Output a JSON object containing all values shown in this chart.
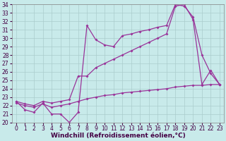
{
  "xlabel": "Windchill (Refroidissement éolien,°C)",
  "background_color": "#c8eaea",
  "line_color": "#993399",
  "grid_color": "#aacccc",
  "xlim": [
    -0.5,
    23.5
  ],
  "ylim": [
    20,
    34
  ],
  "yticks": [
    20,
    21,
    22,
    23,
    24,
    25,
    26,
    27,
    28,
    29,
    30,
    31,
    32,
    33,
    34
  ],
  "xticks": [
    0,
    1,
    2,
    3,
    4,
    5,
    6,
    7,
    8,
    9,
    10,
    11,
    12,
    13,
    14,
    15,
    16,
    17,
    18,
    19,
    20,
    21,
    22,
    23
  ],
  "line1_x": [
    0,
    1,
    2,
    3,
    4,
    5,
    6,
    7,
    8,
    9,
    10,
    11,
    12,
    13,
    14,
    15,
    16,
    17,
    18,
    19,
    20,
    21,
    22,
    23
  ],
  "line1_y": [
    22.5,
    21.5,
    21.2,
    22.3,
    21.0,
    21.0,
    20.0,
    21.2,
    31.5,
    29.8,
    29.2,
    29.0,
    30.3,
    30.5,
    30.8,
    31.0,
    31.3,
    31.5,
    34.0,
    33.8,
    32.5,
    28.0,
    25.8,
    24.5
  ],
  "line2_x": [
    0,
    1,
    2,
    3,
    4,
    5,
    6,
    7,
    8,
    9,
    10,
    11,
    12,
    13,
    14,
    15,
    16,
    17,
    18,
    19,
    20,
    21,
    22,
    23
  ],
  "line2_y": [
    22.5,
    22.2,
    22.0,
    22.5,
    22.3,
    22.5,
    22.7,
    25.5,
    25.5,
    26.5,
    27.0,
    27.5,
    28.0,
    28.5,
    29.0,
    29.5,
    30.0,
    30.5,
    33.8,
    34.0,
    32.2,
    24.5,
    26.2,
    24.5
  ],
  "line3_x": [
    0,
    1,
    2,
    3,
    4,
    5,
    6,
    7,
    8,
    9,
    10,
    11,
    12,
    13,
    14,
    15,
    16,
    17,
    18,
    19,
    20,
    21,
    22,
    23
  ],
  "line3_y": [
    22.3,
    22.0,
    21.8,
    22.2,
    21.8,
    22.0,
    22.2,
    22.5,
    22.8,
    23.0,
    23.2,
    23.3,
    23.5,
    23.6,
    23.7,
    23.8,
    23.9,
    24.0,
    24.2,
    24.3,
    24.4,
    24.4,
    24.5,
    24.5
  ],
  "xlabel_fontsize": 6.5,
  "tick_fontsize": 5.5,
  "marker_size": 2.0,
  "linewidth": 0.9
}
